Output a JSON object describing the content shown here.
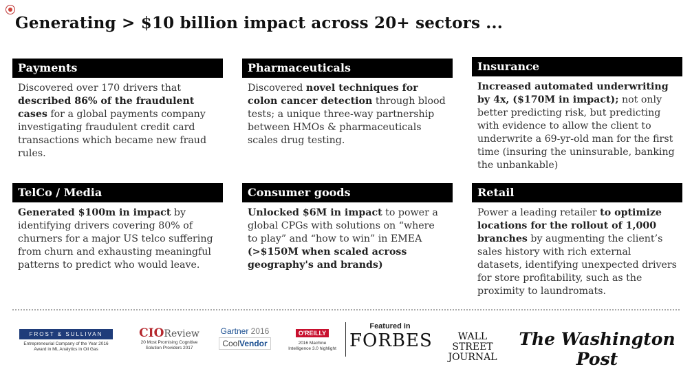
{
  "title": "Generating > $10 billion impact across 20+ sectors ...",
  "cards": [
    {
      "header": "Payments",
      "parts": [
        "Discovered over 170 drivers that ",
        "described 86% of the fraudulent cases",
        " for a global payments company investigating fraudulent credit card transactions which became new fraud rules."
      ]
    },
    {
      "header": "Pharmaceuticals",
      "parts": [
        "Discovered ",
        "novel techniques for colon cancer detection",
        " through blood tests; a unique three-way partnership between HMOs & pharmaceuticals scales drug testing."
      ]
    },
    {
      "header": "Insurance",
      "parts": [
        "",
        "Increased automated underwriting by 4x, ($170M in impact);",
        " not only better predicting risk, but predicting with evidence to allow the client to underwrite a 69-yr-old man for the first time (insuring the uninsurable, banking the unbankable)"
      ]
    },
    {
      "header": "TelCo / Media",
      "parts": [
        "",
        "Generated $100m in impact",
        " by identifying drivers covering 80% of churners for a major US telco suffering from churn and exhausting meaningful patterns to predict who would leave."
      ]
    },
    {
      "header": "Consumer goods",
      "parts": [
        "",
        "Unlocked $6M in impact",
        " to power a global CPGs with solutions on “where to play” and “how to win” in EMEA ",
        "(>$150M when scaled across geography's and brands)"
      ]
    },
    {
      "header": "Retail",
      "parts": [
        "Power a leading retailer ",
        "to optimize locations for the rollout of 1,000 branches",
        " by augmenting the client’s sales history with rich external datasets, identifying unexpected drivers for store profitability, such as the proximity to laundromats."
      ]
    }
  ],
  "footer": {
    "frost": {
      "bar": "FROST & SULLIVAN",
      "line1": "Entrepreneurial Company of the Year 2016",
      "line2": "Award in ML Analytics in Oil Gas"
    },
    "cio": {
      "brand": "CIO",
      "brand2": "Review",
      "line1": "20 Most Promising Cognitive",
      "line2": "Solution Providers 2017"
    },
    "gartner": {
      "brand": "Gartner",
      "year": " 2016",
      "cool": "Cool",
      "vendor": "Vendor"
    },
    "oreilly": {
      "brand": "O'REILLY",
      "line1": "2016 Machine",
      "line2": "Intelligence 3.0 highlight"
    },
    "featured": "Featured in",
    "forbes": "FORBES",
    "wsj1": "WALL STREET",
    "wsj2": "JOURNAL",
    "wapo": "The Washington Post"
  }
}
